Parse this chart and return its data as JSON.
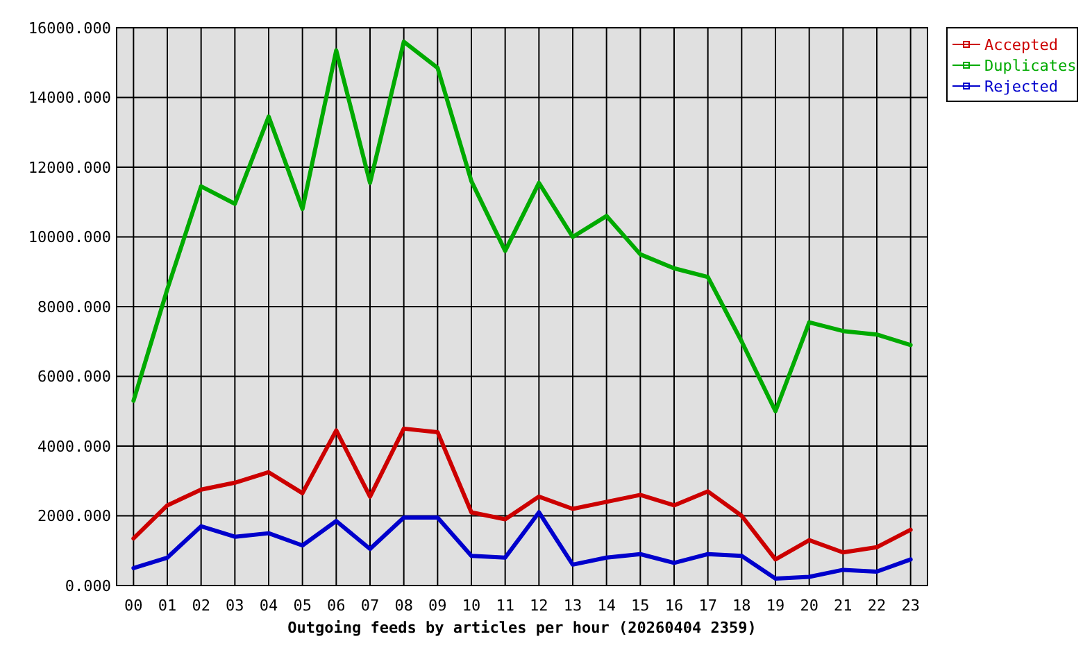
{
  "chart_data": {
    "type": "line",
    "xlabel": "Outgoing feeds by articles per hour (20260404 2359)",
    "categories": [
      "00",
      "01",
      "02",
      "03",
      "04",
      "05",
      "06",
      "07",
      "08",
      "09",
      "10",
      "11",
      "12",
      "13",
      "14",
      "15",
      "16",
      "17",
      "18",
      "19",
      "20",
      "21",
      "22",
      "23"
    ],
    "series": [
      {
        "name": "Accepted",
        "color": "#cc0000",
        "values": [
          1350,
          2300,
          2750,
          2950,
          3250,
          2650,
          4450,
          2550,
          4500,
          4400,
          2100,
          1900,
          2550,
          2200,
          2400,
          2600,
          2300,
          2700,
          2000,
          750,
          1300,
          950,
          1100,
          1600
        ]
      },
      {
        "name": "Duplicates",
        "color": "#00aa00",
        "values": [
          5300,
          8500,
          11450,
          10950,
          13450,
          10800,
          15350,
          11550,
          15600,
          14850,
          11600,
          9600,
          11550,
          10000,
          10600,
          9500,
          9100,
          8850,
          7000,
          5000,
          7550,
          7300,
          7200,
          6900
        ]
      },
      {
        "name": "Rejected",
        "color": "#0000cc",
        "values": [
          500,
          800,
          1700,
          1400,
          1500,
          1150,
          1850,
          1050,
          1950,
          1950,
          850,
          800,
          2100,
          600,
          800,
          900,
          650,
          900,
          850,
          200,
          250,
          450,
          400,
          750
        ]
      }
    ],
    "ylim": [
      0,
      16000
    ],
    "yticks": [
      {
        "value": 0,
        "label": "0.000"
      },
      {
        "value": 2000,
        "label": "2000.000"
      },
      {
        "value": 4000,
        "label": "4000.000"
      },
      {
        "value": 6000,
        "label": "6000.000"
      },
      {
        "value": 8000,
        "label": "8000.000"
      },
      {
        "value": 10000,
        "label": "10000.000"
      },
      {
        "value": 12000,
        "label": "12000.000"
      },
      {
        "value": 14000,
        "label": "14000.000"
      },
      {
        "value": 16000,
        "label": "16000.000"
      }
    ],
    "grid": true,
    "legend": "top right"
  }
}
